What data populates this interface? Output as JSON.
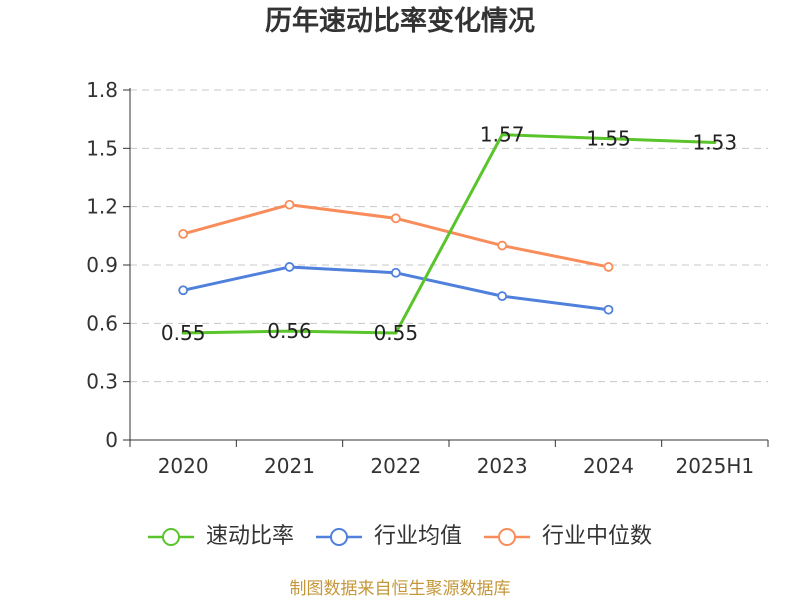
{
  "chart_data": {
    "type": "line",
    "title": "历年速动比率变化情况",
    "categories": [
      "2020",
      "2021",
      "2022",
      "2023",
      "2024",
      "2025H1"
    ],
    "series": [
      {
        "name": "速动比率",
        "values": [
          0.55,
          0.56,
          0.55,
          1.57,
          1.55,
          1.53
        ],
        "color": "#5ac42b",
        "show_labels": true
      },
      {
        "name": "行业均值",
        "values": [
          0.77,
          0.89,
          0.86,
          0.74,
          0.67,
          null
        ],
        "color": "#4f80dc",
        "show_labels": false
      },
      {
        "name": "行业中位数",
        "values": [
          1.06,
          1.21,
          1.14,
          1.0,
          0.89,
          null
        ],
        "color": "#f88d5b",
        "show_labels": false
      }
    ],
    "xlabel": "",
    "ylabel": "",
    "ylim": [
      0,
      1.8
    ],
    "yticks": [
      "0",
      "0.3",
      "0.6",
      "0.9",
      "1.2",
      "1.5",
      "1.8"
    ],
    "grid": true,
    "legend": "bottom"
  },
  "footer": {
    "source": "制图数据来自恒生聚源数据库"
  }
}
